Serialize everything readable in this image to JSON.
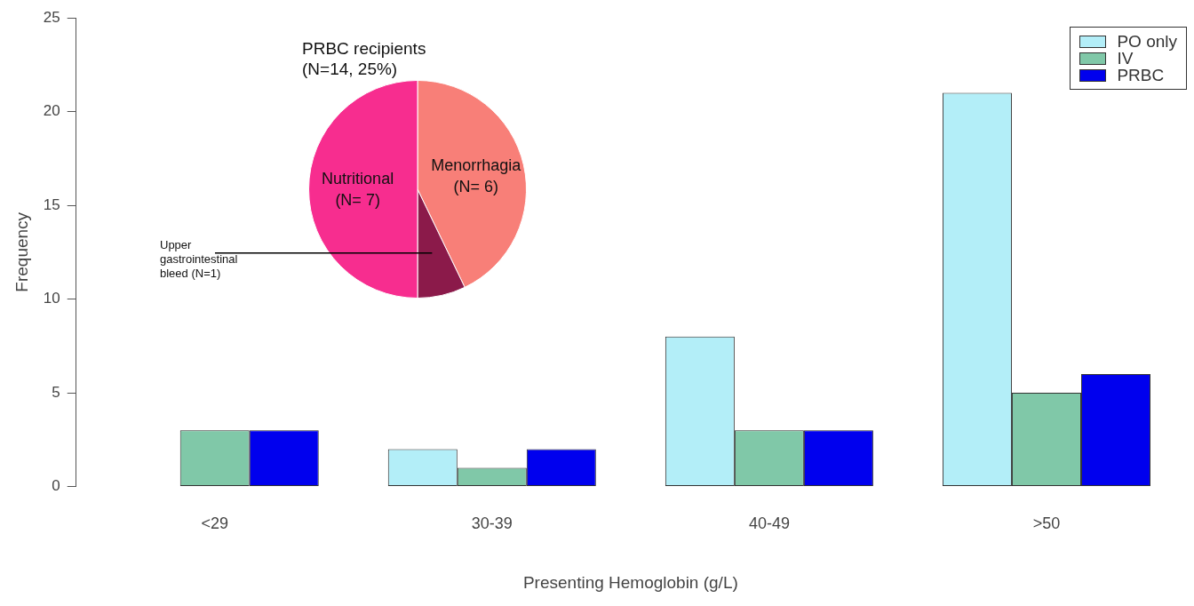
{
  "chart_data": [
    {
      "type": "bar",
      "xlabel": "Presenting Hemoglobin (g/L)",
      "ylabel": "Frequency",
      "categories": [
        "<29",
        "30-39",
        "40-49",
        ">50"
      ],
      "series": [
        {
          "name": "PO only",
          "color": "#b3eef8",
          "values": [
            0,
            2,
            8,
            21
          ]
        },
        {
          "name": "IV",
          "color": "#80c8a8",
          "values": [
            3,
            1,
            3,
            5
          ]
        },
        {
          "name": "PRBC",
          "color": "#0000ee",
          "values": [
            3,
            2,
            3,
            6
          ]
        }
      ],
      "ylim": [
        0,
        25
      ],
      "yticks": [
        0,
        5,
        10,
        15,
        20,
        25
      ],
      "legend": "top right"
    },
    {
      "type": "pie",
      "title": "PRBC recipients\n(N=14, 25%)",
      "categories": [
        "Menorrhagia",
        "Upper gastrointestinal bleed",
        "Nutritional"
      ],
      "values": [
        6,
        1,
        7
      ],
      "colors": [
        "#f87f78",
        "#8b1a4a",
        "#f72d8f"
      ],
      "value_labels": [
        "(N= 6)",
        "(N=1)",
        "(N= 7)"
      ]
    }
  ]
}
